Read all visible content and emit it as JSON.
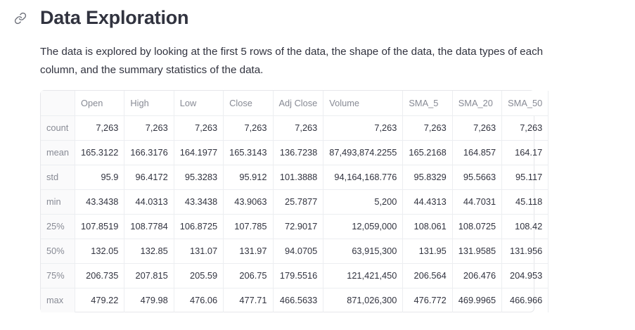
{
  "section": {
    "title": "Data Exploration",
    "description": "The data is explored by looking at the first 5 rows of the data, the shape of the data, the data types of each column, and the summary statistics of the data."
  },
  "table": {
    "columns": [
      "Open",
      "High",
      "Low",
      "Close",
      "Adj Close",
      "Volume",
      "SMA_5",
      "SMA_20",
      "SMA_50"
    ],
    "rows": [
      {
        "label": "count",
        "cells": [
          "7,263",
          "7,263",
          "7,263",
          "7,263",
          "7,263",
          "7,263",
          "7,263",
          "7,263",
          "7,263"
        ]
      },
      {
        "label": "mean",
        "cells": [
          "165.3122",
          "166.3176",
          "164.1977",
          "165.3143",
          "136.7238",
          "87,493,874.2255",
          "165.2168",
          "164.857",
          "164.17"
        ]
      },
      {
        "label": "std",
        "cells": [
          "95.9",
          "96.4172",
          "95.3283",
          "95.912",
          "101.3888",
          "94,164,168.776",
          "95.8329",
          "95.5663",
          "95.117"
        ]
      },
      {
        "label": "min",
        "cells": [
          "43.3438",
          "44.0313",
          "43.3438",
          "43.9063",
          "25.7877",
          "5,200",
          "44.4313",
          "44.7031",
          "45.118"
        ]
      },
      {
        "label": "25%",
        "cells": [
          "107.8519",
          "108.7784",
          "106.8725",
          "107.785",
          "72.9017",
          "12,059,000",
          "108.061",
          "108.0725",
          "108.42"
        ]
      },
      {
        "label": "50%",
        "cells": [
          "132.05",
          "132.85",
          "131.07",
          "131.97",
          "94.0705",
          "63,915,300",
          "131.95",
          "131.9585",
          "131.956"
        ]
      },
      {
        "label": "75%",
        "cells": [
          "206.735",
          "207.815",
          "205.59",
          "206.75",
          "179.5516",
          "121,421,450",
          "206.564",
          "206.476",
          "204.953"
        ]
      },
      {
        "label": "max",
        "cells": [
          "479.22",
          "479.98",
          "476.06",
          "477.71",
          "466.5633",
          "871,026,300",
          "476.772",
          "469.9965",
          "466.966"
        ]
      }
    ]
  },
  "icons": {
    "anchor": "link-icon"
  },
  "colors": {
    "text": "#31333f",
    "muted": "#878a94",
    "border": "#e6e7ea",
    "index_bg": "#fafafb"
  }
}
